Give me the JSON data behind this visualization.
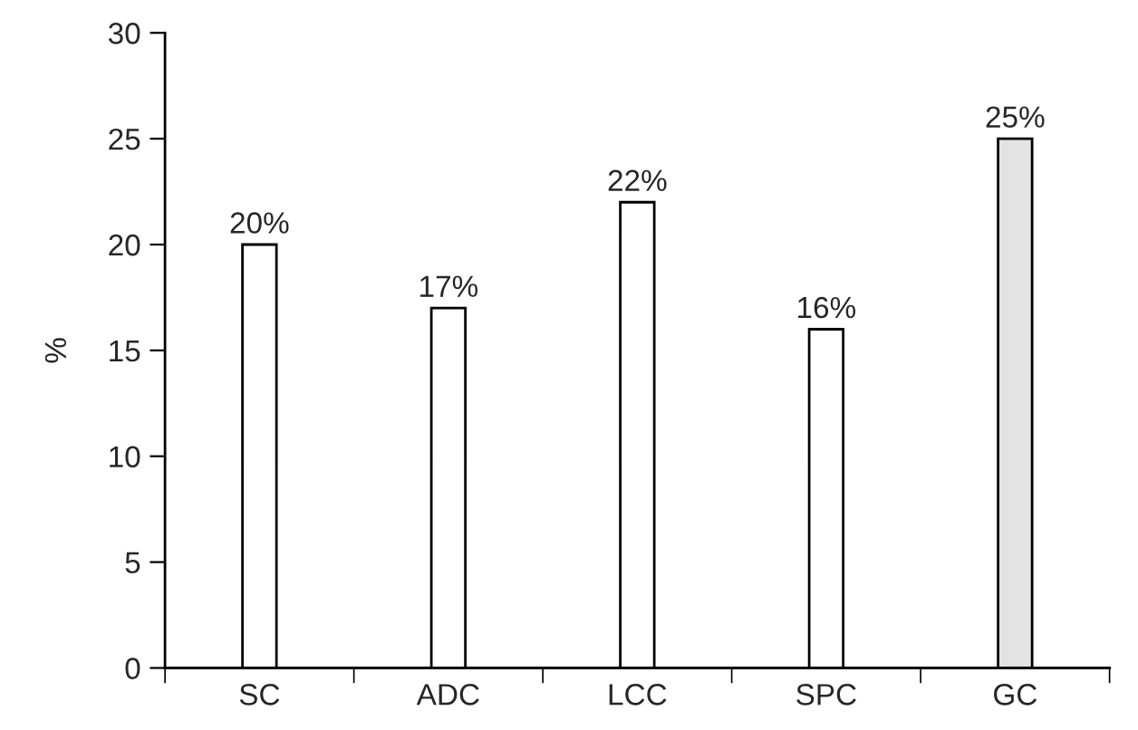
{
  "chart_data": {
    "type": "bar",
    "ylabel": "%",
    "categories": [
      "SC",
      "ADC",
      "LCC",
      "SPC",
      "GC"
    ],
    "values": [
      20,
      17,
      22,
      16,
      25
    ],
    "value_labels": [
      "20%",
      "17%",
      "22%",
      "16%",
      "25%"
    ],
    "colors": [
      "#ffffff",
      "#ffffff",
      "#ffffff",
      "#ffffff",
      "#e3e3e3"
    ],
    "ylim": [
      0,
      30
    ],
    "yticks": [
      0,
      5,
      10,
      15,
      20,
      25,
      30
    ],
    "grid": false,
    "legend": false
  }
}
